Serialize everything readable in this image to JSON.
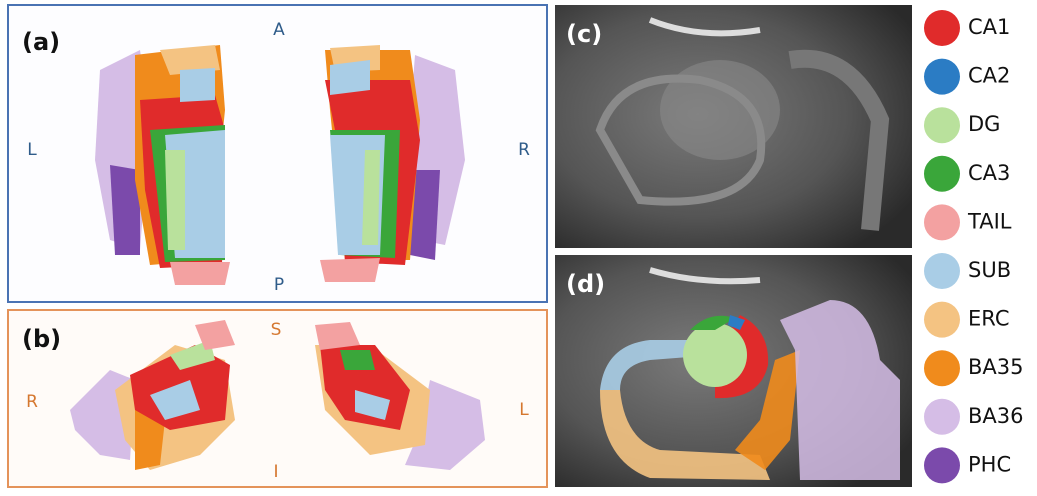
{
  "panels": {
    "a": {
      "label": "(a)",
      "orientation": {
        "top": "A",
        "left": "L",
        "right": "R",
        "bottom": "P"
      }
    },
    "b": {
      "label": "(b)",
      "orientation": {
        "top": "S",
        "left": "R",
        "right": "L",
        "bottom": "I"
      }
    },
    "c": {
      "label": "(c)"
    },
    "d": {
      "label": "(d)"
    }
  },
  "legend": [
    {
      "label": "CA1",
      "color": "#e02b2b"
    },
    {
      "label": "CA2",
      "color": "#2b7cc4"
    },
    {
      "label": "DG",
      "color": "#b9e19c"
    },
    {
      "label": "CA3",
      "color": "#3aa63a"
    },
    {
      "label": "TAIL",
      "color": "#f3a1a1"
    },
    {
      "label": "SUB",
      "color": "#a9cde6"
    },
    {
      "label": "ERC",
      "color": "#f4c382"
    },
    {
      "label": "BA35",
      "color": "#f08b1c"
    },
    {
      "label": "BA36",
      "color": "#d5bde6"
    },
    {
      "label": "PHC",
      "color": "#7b4aab"
    }
  ]
}
